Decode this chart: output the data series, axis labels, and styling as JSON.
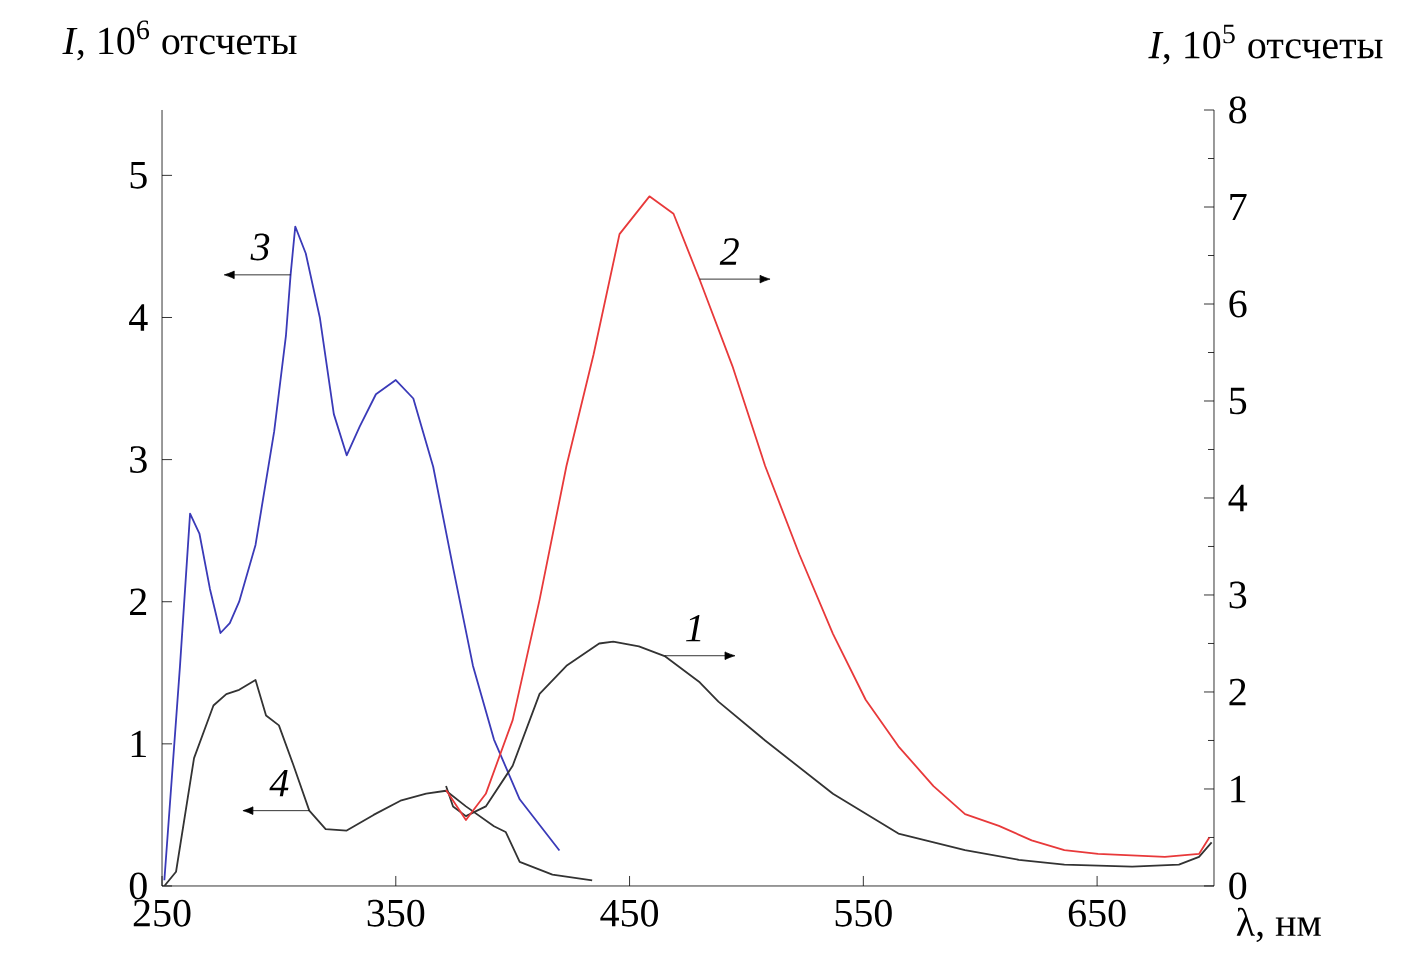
{
  "chart_data": {
    "type": "line",
    "xlabel": "λ, нм",
    "ylabel": "*I*, 10$^{6}$ отсчеты",
    "y2label": "*I*, 10$^{5}$ отсчеты",
    "xlim": [
      250,
      700
    ],
    "xticks": [
      250,
      350,
      450,
      550,
      650
    ],
    "ylim": [
      0,
      5.46
    ],
    "yticks": [
      0,
      1,
      2,
      3,
      4,
      5
    ],
    "y2lim": [
      0,
      8
    ],
    "y2ticks": [
      0,
      1,
      2,
      3,
      4,
      5,
      6,
      7,
      8
    ],
    "marker": "none",
    "line_style": "solid",
    "series": [
      {
        "color": "#333333",
        "axis": "y2",
        "x": [
          371.5,
          374.5,
          380,
          388.5,
          400,
          411.5,
          423,
          437,
          443,
          454,
          465,
          480,
          488,
          508,
          537,
          565,
          593.5,
          616.5,
          636,
          665,
          685,
          693.6,
          699
        ],
        "values": [
          1.03,
          0.82,
          0.72,
          0.82,
          1.24,
          1.98,
          2.27,
          2.5,
          2.52,
          2.47,
          2.37,
          2.1,
          1.9,
          1.5,
          0.95,
          0.54,
          0.37,
          0.27,
          0.22,
          0.2,
          0.22,
          0.3,
          0.45
        ]
      },
      {
        "color": "#e8393a",
        "axis": "y2",
        "x": [
          371.5,
          380,
          388.5,
          400,
          411.5,
          423,
          434.6,
          445.7,
          458.5,
          468.8,
          480,
          494,
          508,
          522.6,
          537,
          551,
          565,
          580,
          593.5,
          608,
          622,
          636,
          650.4,
          679,
          693.6,
          698
        ],
        "values": [
          0.99,
          0.68,
          0.95,
          1.71,
          2.95,
          4.33,
          5.48,
          6.72,
          7.11,
          6.93,
          6.25,
          5.36,
          4.33,
          3.42,
          2.6,
          1.92,
          1.44,
          1.03,
          0.74,
          0.62,
          0.47,
          0.37,
          0.33,
          0.3,
          0.33,
          0.5
        ]
      },
      {
        "color": "#3a3ab8",
        "axis": "y",
        "x": [
          251,
          257.7,
          262,
          266,
          270.5,
          275,
          279,
          283,
          290,
          298,
          303,
          305,
          307,
          311.5,
          317.5,
          323.5,
          329,
          334.5,
          341.5,
          350,
          357.5,
          366,
          374.5,
          383,
          392,
          403,
          420
        ],
        "values": [
          0.04,
          1.55,
          2.62,
          2.48,
          2.09,
          1.78,
          1.85,
          2.0,
          2.4,
          3.2,
          3.87,
          4.3,
          4.64,
          4.45,
          4.0,
          3.32,
          3.03,
          3.23,
          3.46,
          3.56,
          3.43,
          2.95,
          2.24,
          1.55,
          1.03,
          0.61,
          0.25
        ]
      },
      {
        "color": "#333333",
        "axis": "y",
        "x": [
          251,
          256,
          263.7,
          272,
          277.5,
          283,
          290,
          294.5,
          300,
          306,
          313,
          320,
          329,
          340.5,
          352,
          363,
          371.5,
          380,
          392,
          397,
          403,
          417,
          434
        ],
        "values": [
          0.0,
          0.1,
          0.9,
          1.27,
          1.35,
          1.38,
          1.45,
          1.2,
          1.13,
          0.86,
          0.53,
          0.4,
          0.39,
          0.5,
          0.6,
          0.65,
          0.67,
          0.56,
          0.42,
          0.38,
          0.17,
          0.08,
          0.04
        ]
      }
    ],
    "annotations": [
      {
        "text": "1",
        "x": 465,
        "y": 1.62
      },
      {
        "text": "2",
        "x": 480,
        "y": 4.27
      },
      {
        "text": "3",
        "x": 305,
        "y": 4.3
      },
      {
        "text": "4",
        "x": 313,
        "y": 0.53
      }
    ]
  }
}
